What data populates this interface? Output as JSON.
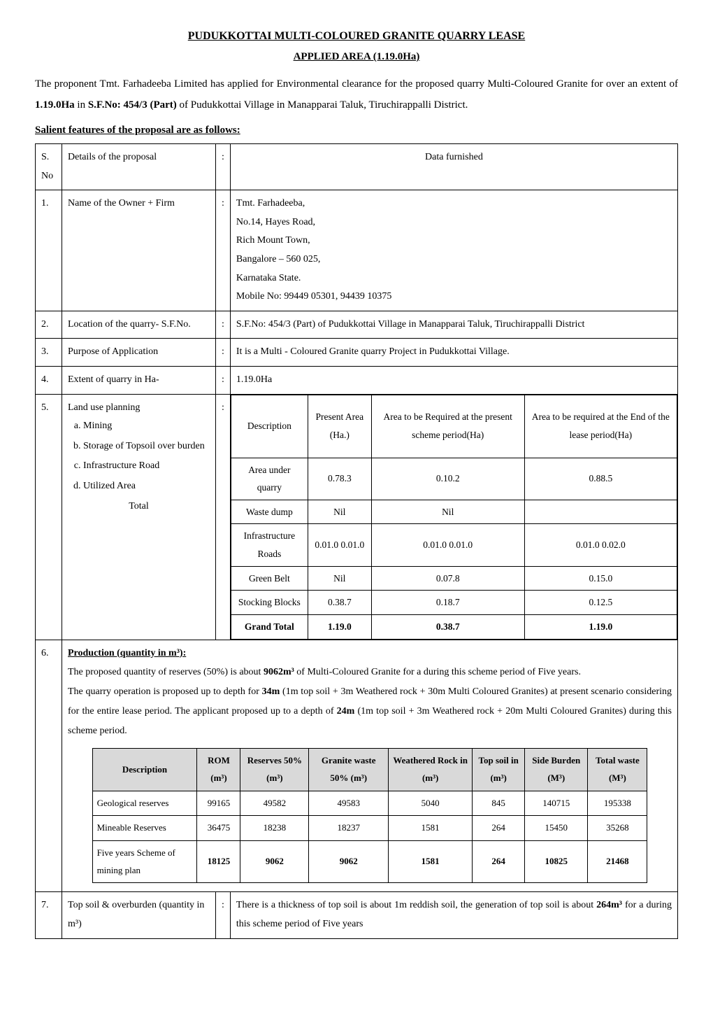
{
  "doc": {
    "title": "PUDUKKOTTAI MULTI-COLOURED GRANITE QUARRY LEASE",
    "subtitle": "APPLIED AREA (1.19.0Ha)",
    "intro_html": "The proponent Tmt. Farhadeeba Limited has applied for Environmental clearance for the proposed quarry Multi-Coloured Granite for over an extent of <b>1.19.0Ha</b> in <b>S.F.No: 454/3 (Part)</b> of Pudukkottai Village in Manapparai Taluk, Tiruchirappalli District.",
    "salient_heading": "Salient features of the proposal are as follows:"
  },
  "header": {
    "sno": "S. No",
    "details": "Details of the proposal",
    "colon": ":",
    "data": "Data furnished"
  },
  "rows": {
    "r1": {
      "sn": "1.",
      "label": "Name of the Owner + Firm",
      "lines": [
        "Tmt. Farhadeeba,",
        "No.14, Hayes Road,",
        "Rich Mount Town,",
        "Bangalore – 560 025,",
        "Karnataka State.",
        "Mobile No: 99449 05301, 94439 10375"
      ]
    },
    "r2": {
      "sn": "2.",
      "label": "Location of the quarry- S.F.No.",
      "value": "S.F.No: 454/3 (Part) of Pudukkottai Village in Manapparai Taluk, Tiruchirappalli District"
    },
    "r3": {
      "sn": "3.",
      "label": "Purpose of Application",
      "value": "It is a Multi - Coloured Granite quarry Project in Pudukkottai Village."
    },
    "r4": {
      "sn": "4.",
      "label": "Extent of quarry in Ha-",
      "value": "1.19.0Ha"
    },
    "r5": {
      "sn": "5.",
      "label": "Land use planning",
      "items": [
        "Mining",
        "Storage of Topsoil over burden",
        "Infrastructure Road",
        "Utilized Area"
      ],
      "total_label": "Total"
    },
    "r6": {
      "sn": "6.",
      "heading": "Production (quantity in m³):",
      "body_html": "The proposed quantity of reserves (50%) is about <b>9062m³</b> of Multi-Coloured Granite for a during this scheme period of Five years.<br>The quarry operation is proposed up to depth for <b>34m</b> (1m top soil + 3m Weathered rock + 30m Multi Coloured Granites) at present scenario considering for the entire lease period. The applicant proposed up to a depth of <b>24m</b> (1m top soil + 3m Weathered rock + 20m Multi Coloured Granites) during this scheme period."
    },
    "r7": {
      "sn": "7.",
      "label": "Top soil & overburden (quantity in m³)",
      "value_html": "There is a thickness of top soil is about 1m reddish soil, the generation of top soil is about <b>264m³</b> for a during this scheme period of Five years"
    }
  },
  "land_use_table": {
    "headers": {
      "desc": "Description",
      "present": "Present Area (Ha.)",
      "req": "Area to be Required at the present scheme period(Ha)",
      "end": "Area to be required at the End of the lease period(Ha)"
    },
    "rows": [
      {
        "desc": "Area under quarry",
        "present": "0.78.3",
        "req": "0.10.2",
        "end": "0.88.5"
      },
      {
        "desc": "Waste dump",
        "present": "Nil",
        "req": "Nil",
        "end": ""
      },
      {
        "desc": "Infrastructure Roads",
        "present": "0.01.0 0.01.0",
        "req": "0.01.0 0.01.0",
        "end": "0.01.0 0.02.0"
      },
      {
        "desc": "Green Belt",
        "present": "Nil",
        "req": "0.07.8",
        "end": "0.15.0"
      },
      {
        "desc": "Stocking Blocks",
        "present": "0.38.7",
        "req": "0.18.7",
        "end": "0.12.5"
      }
    ],
    "grand": {
      "desc": "Grand Total",
      "present": "1.19.0",
      "req": "0.38.7",
      "end": "1.19.0"
    }
  },
  "reserves_table": {
    "headers": {
      "desc": "Description",
      "rom": "ROM (m³)",
      "res": "Reserves 50% (m³)",
      "gran": "Granite waste 50% (m³)",
      "weath": "Weathered Rock in (m³)",
      "top": "Top soil in (m³)",
      "side": "Side Burden (M³)",
      "total": "Total waste (M³)"
    },
    "rows": [
      {
        "desc": "Geological reserves",
        "rom": "99165",
        "res": "49582",
        "gran": "49583",
        "weath": "5040",
        "top": "845",
        "side": "140715",
        "total": "195338"
      },
      {
        "desc": "Mineable Reserves",
        "rom": "36475",
        "res": "18238",
        "gran": "18237",
        "weath": "1581",
        "top": "264",
        "side": "15450",
        "total": "35268"
      },
      {
        "desc": "Five years Scheme of mining plan",
        "rom": "18125",
        "res": "9062",
        "gran": "9062",
        "weath": "1581",
        "top": "264",
        "side": "10825",
        "total": "21468",
        "bold": true
      }
    ]
  },
  "colors": {
    "border": "#000000",
    "header_bg": "#d9d9d9",
    "text": "#000000",
    "bg": "#ffffff"
  }
}
